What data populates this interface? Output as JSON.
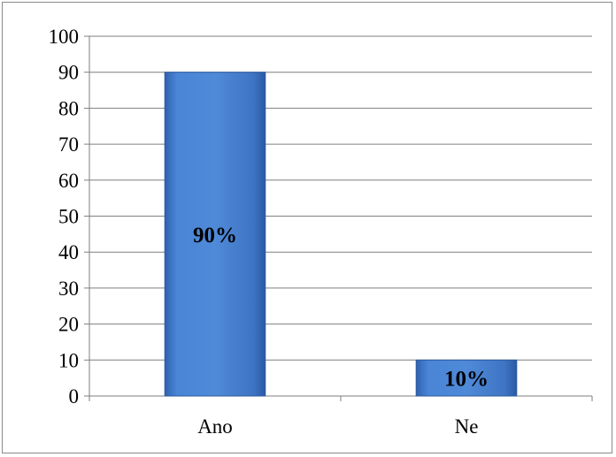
{
  "chart_data": {
    "type": "bar",
    "categories": [
      "Ano",
      "Ne"
    ],
    "values": [
      90,
      10
    ],
    "data_labels": [
      "90%",
      "10%"
    ],
    "ylim": [
      0,
      100
    ],
    "yticks": [
      "0",
      "10",
      "20",
      "30",
      "40",
      "50",
      "60",
      "70",
      "80",
      "90",
      "100"
    ],
    "grid": true,
    "legend": "none",
    "bar_color": "#4a7fd0",
    "bar_edge_color": "#2e5a9e"
  }
}
